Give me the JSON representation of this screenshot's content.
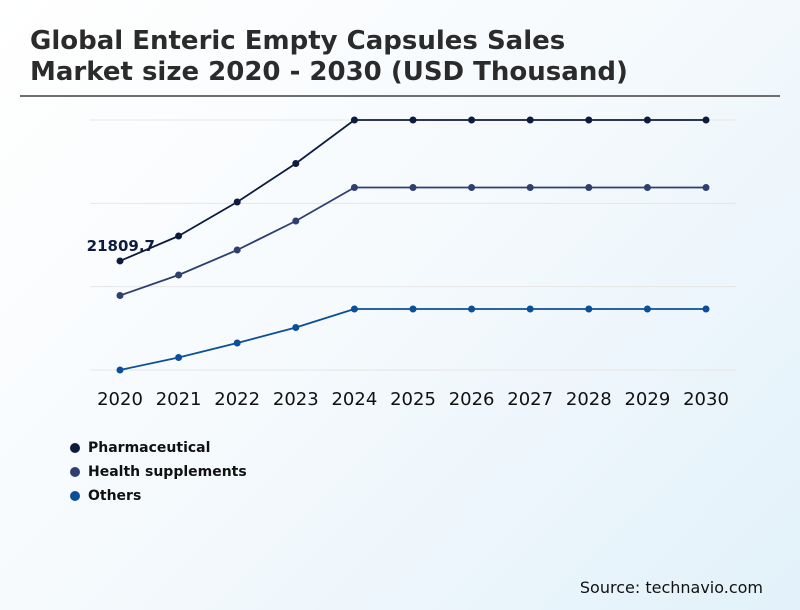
{
  "title": {
    "line1": "Global Enteric Empty Capsules Sales",
    "line2": "Market size 2020 - 2030 (USD Thousand)"
  },
  "source": "Source: technavio.com",
  "colors": {
    "pharmaceutical": "#0d1b3e",
    "health_supplements": "#2e3f70",
    "others": "#0b4f99",
    "grid": "#e6e6e6"
  },
  "chart_data": {
    "type": "line",
    "title": "Global Enteric Empty Capsules Sales Market size 2020 - 2030 (USD Thousand)",
    "xlabel": "",
    "ylabel": "",
    "x": [
      "2020",
      "2021",
      "2022",
      "2023",
      "2024",
      "2025",
      "2026",
      "2027",
      "2028",
      "2029",
      "2030"
    ],
    "ylim": [
      0,
      50000
    ],
    "grid": true,
    "legend": "bottom-left",
    "series": [
      {
        "name": "Pharmaceutical",
        "color": "#0d1b3e",
        "values": [
          21809.7,
          26800,
          33600,
          41300,
          50000,
          50000,
          50000,
          50000,
          50000,
          50000,
          50000
        ]
      },
      {
        "name": "Health supplements",
        "color": "#2e3f70",
        "values": [
          14900,
          19000,
          24000,
          29800,
          36500,
          36500,
          36500,
          36500,
          36500,
          36500,
          36500
        ]
      },
      {
        "name": "Others",
        "color": "#0b4f99",
        "values": [
          0,
          2500,
          5400,
          8500,
          12200,
          12200,
          12200,
          12200,
          12200,
          12200,
          12200
        ]
      }
    ],
    "annotations": [
      {
        "series": 0,
        "index": 0,
        "text": "21809.7"
      }
    ]
  }
}
